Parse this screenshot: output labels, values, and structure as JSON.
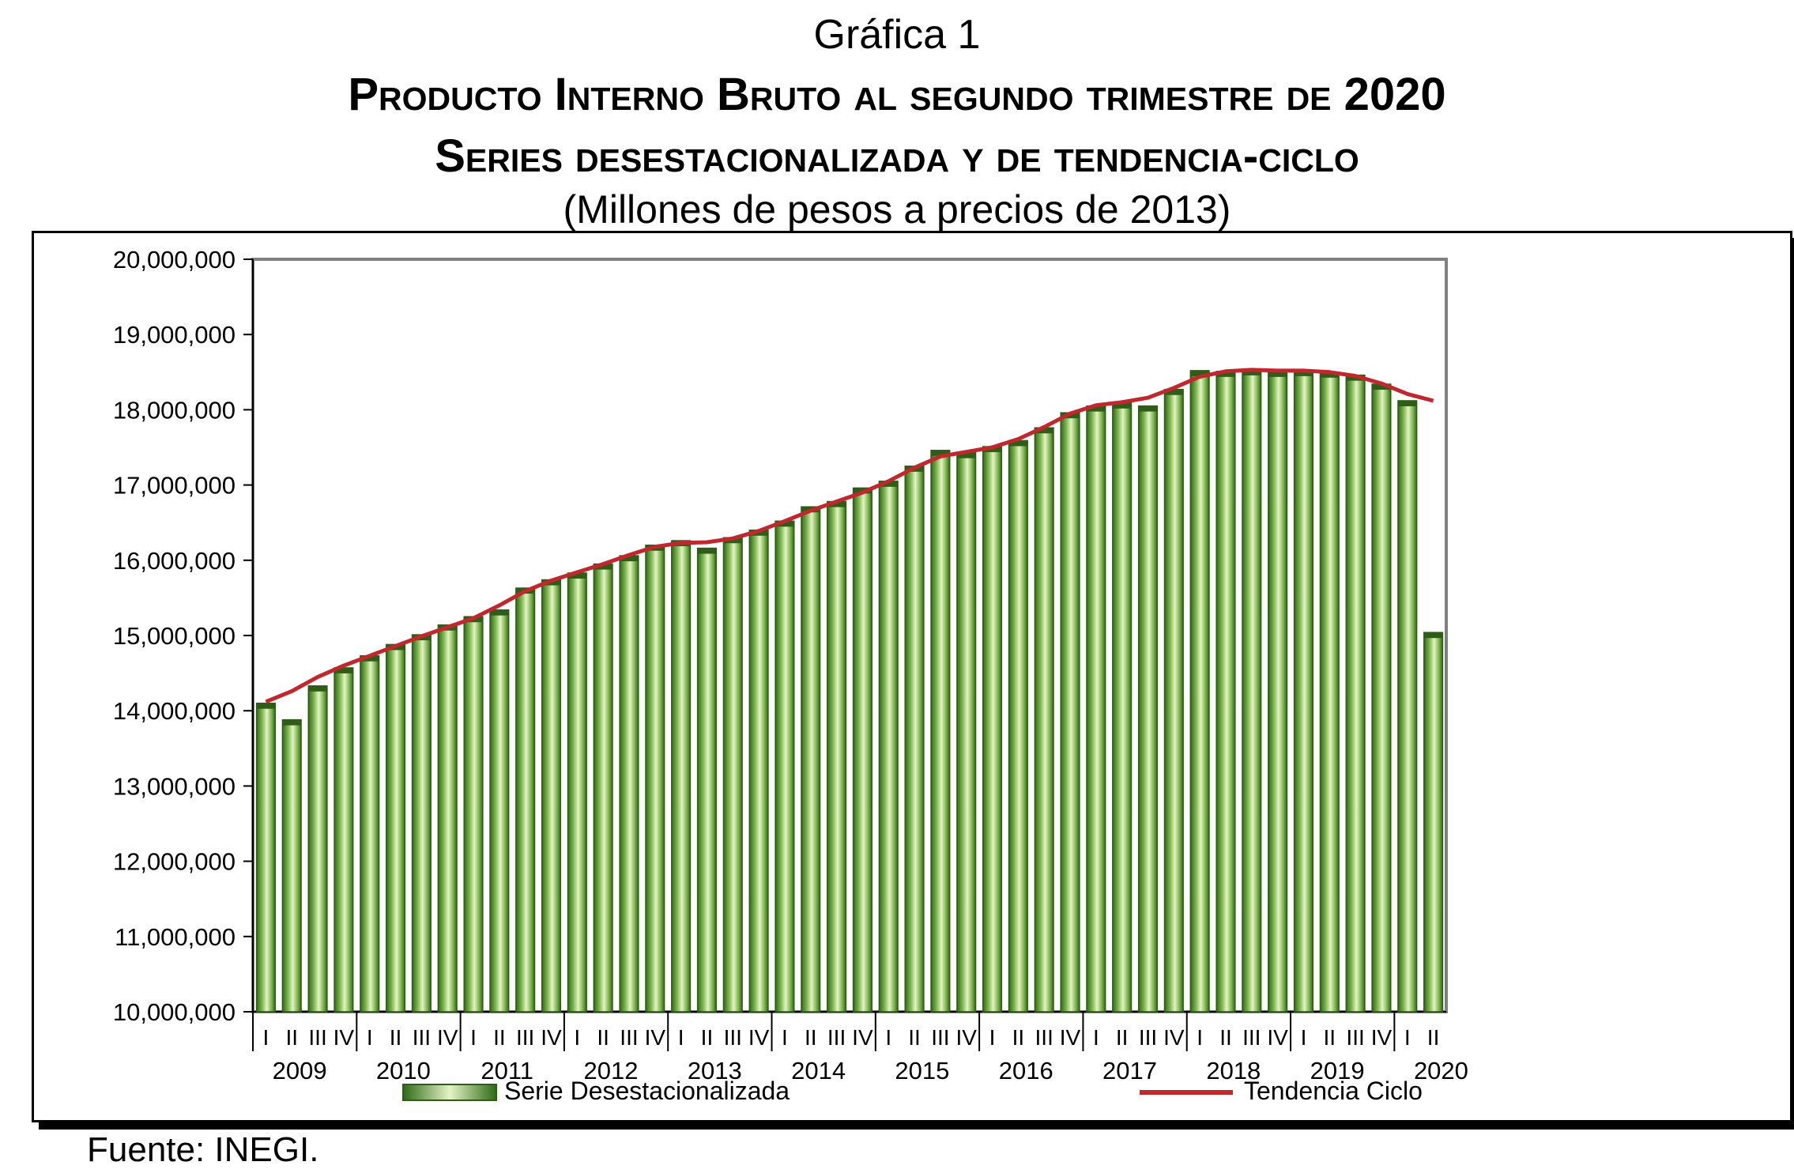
{
  "header": {
    "label": "Gráfica 1",
    "title_line1": "Producto Interno Bruto al segundo trimestre de 2020",
    "title_line2": "Series desestacionalizada y de tendencia-ciclo",
    "subtitle": "(Millones de pesos a precios de 2013)"
  },
  "footer": {
    "source": "Fuente: INEGI."
  },
  "colors": {
    "bar": "#5f9a3a",
    "bar_edge": "#2f5c17",
    "trend": "#c0282d",
    "plot_border": "#808080"
  },
  "chart_data": {
    "type": "bar",
    "title": "Producto Interno Bruto al segundo trimestre de 2020",
    "subtitle": "(Millones de pesos a precios de 2013)",
    "xlabel": "",
    "ylabel": "",
    "ylim": [
      10000000,
      20000000
    ],
    "yticks": [
      10000000,
      11000000,
      12000000,
      13000000,
      14000000,
      15000000,
      16000000,
      17000000,
      18000000,
      19000000,
      20000000
    ],
    "ytick_labels": [
      "10,000,000",
      "11,000,000",
      "12,000,000",
      "13,000,000",
      "14,000,000",
      "15,000,000",
      "16,000,000",
      "17,000,000",
      "18,000,000",
      "19,000,000",
      "20,000,000"
    ],
    "quarter_labels": [
      "I",
      "II",
      "III",
      "IV"
    ],
    "years": [
      "2009",
      "2010",
      "2011",
      "2012",
      "2013",
      "2014",
      "2015",
      "2016",
      "2017",
      "2018",
      "2019",
      "2020"
    ],
    "grid": false,
    "legend_position": "bottom",
    "series": [
      {
        "name": "Serie Desestacionalizada",
        "type": "bar",
        "values": [
          14100000,
          13880000,
          14330000,
          14570000,
          14730000,
          14880000,
          15010000,
          15140000,
          15250000,
          15340000,
          15630000,
          15740000,
          15830000,
          15950000,
          16060000,
          16200000,
          16260000,
          16160000,
          16300000,
          16400000,
          16520000,
          16710000,
          16780000,
          16960000,
          17050000,
          17250000,
          17460000,
          17430000,
          17510000,
          17590000,
          17760000,
          17960000,
          18050000,
          18090000,
          18050000,
          18270000,
          18520000,
          18510000,
          18530000,
          18510000,
          18520000,
          18500000,
          18460000,
          18340000,
          18120000,
          15040000
        ]
      },
      {
        "name": "Tendencia Ciclo",
        "type": "line",
        "values": [
          14120000,
          14260000,
          14450000,
          14600000,
          14730000,
          14860000,
          14990000,
          15110000,
          15230000,
          15400000,
          15590000,
          15730000,
          15840000,
          15950000,
          16070000,
          16180000,
          16230000,
          16240000,
          16290000,
          16390000,
          16520000,
          16660000,
          16780000,
          16900000,
          17050000,
          17230000,
          17380000,
          17440000,
          17500000,
          17610000,
          17770000,
          17950000,
          18060000,
          18100000,
          18160000,
          18290000,
          18440000,
          18510000,
          18530000,
          18520000,
          18520000,
          18500000,
          18450000,
          18350000,
          18210000,
          18120000
        ]
      }
    ]
  }
}
